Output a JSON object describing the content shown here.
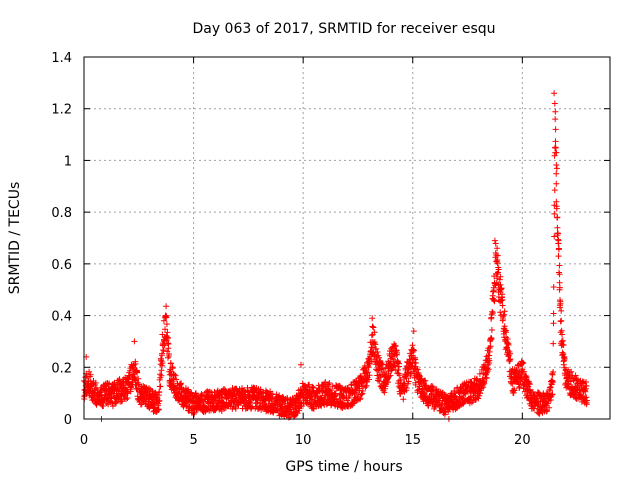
{
  "chart_data": {
    "type": "scatter",
    "title": "Day 063 of 2017, SRMTID for receiver esqu",
    "xlabel": "GPS time / hours",
    "ylabel": "SRMTID / TECUs",
    "xlim": [
      0,
      24
    ],
    "ylim": [
      0,
      1.4
    ],
    "x_ticks": [
      0,
      5,
      10,
      15,
      20
    ],
    "x_tick_labels": [
      "0",
      "5",
      "10",
      "15",
      "20"
    ],
    "y_ticks": [
      0,
      0.2,
      0.4,
      0.6,
      0.8,
      1,
      1.2,
      1.4
    ],
    "y_tick_labels": [
      "0",
      "0.2",
      "0.4",
      "0.6",
      "0.8",
      "1",
      "1.2",
      "1.4"
    ],
    "grid": true,
    "marker": "plus",
    "marker_color": "#ff0000",
    "series": [
      {
        "name": "SRMTID",
        "profile": [
          [
            0.0,
            0.12
          ],
          [
            0.2,
            0.14
          ],
          [
            0.5,
            0.1
          ],
          [
            0.8,
            0.08
          ],
          [
            1.0,
            0.1
          ],
          [
            1.3,
            0.09
          ],
          [
            1.6,
            0.11
          ],
          [
            2.0,
            0.12
          ],
          [
            2.3,
            0.2
          ],
          [
            2.5,
            0.1
          ],
          [
            3.0,
            0.08
          ],
          [
            3.4,
            0.05
          ],
          [
            3.6,
            0.3
          ],
          [
            3.75,
            0.38
          ],
          [
            3.9,
            0.18
          ],
          [
            4.2,
            0.12
          ],
          [
            4.6,
            0.08
          ],
          [
            5.0,
            0.06
          ],
          [
            6.0,
            0.07
          ],
          [
            7.0,
            0.08
          ],
          [
            8.0,
            0.08
          ],
          [
            9.0,
            0.05
          ],
          [
            9.6,
            0.04
          ],
          [
            10.0,
            0.1
          ],
          [
            10.5,
            0.08
          ],
          [
            11.0,
            0.1
          ],
          [
            12.0,
            0.08
          ],
          [
            12.6,
            0.12
          ],
          [
            13.0,
            0.2
          ],
          [
            13.2,
            0.32
          ],
          [
            13.4,
            0.2
          ],
          [
            13.7,
            0.15
          ],
          [
            14.0,
            0.22
          ],
          [
            14.2,
            0.25
          ],
          [
            14.5,
            0.1
          ],
          [
            15.0,
            0.25
          ],
          [
            15.2,
            0.15
          ],
          [
            15.6,
            0.1
          ],
          [
            16.0,
            0.08
          ],
          [
            16.6,
            0.05
          ],
          [
            17.0,
            0.08
          ],
          [
            17.5,
            0.1
          ],
          [
            18.0,
            0.12
          ],
          [
            18.4,
            0.2
          ],
          [
            18.6,
            0.35
          ],
          [
            18.8,
            0.62
          ],
          [
            19.0,
            0.48
          ],
          [
            19.2,
            0.35
          ],
          [
            19.4,
            0.22
          ],
          [
            19.6,
            0.14
          ],
          [
            20.0,
            0.18
          ],
          [
            20.4,
            0.08
          ],
          [
            20.8,
            0.06
          ],
          [
            21.2,
            0.06
          ],
          [
            21.4,
            0.15
          ],
          [
            21.5,
            1.2
          ],
          [
            21.6,
            0.8
          ],
          [
            21.7,
            0.5
          ],
          [
            21.8,
            0.3
          ],
          [
            22.0,
            0.15
          ],
          [
            22.5,
            0.12
          ],
          [
            22.9,
            0.1
          ]
        ],
        "peaks": [
          [
            3.72,
            0.4
          ],
          [
            13.15,
            0.39
          ],
          [
            14.15,
            0.29
          ],
          [
            15.05,
            0.34
          ],
          [
            18.75,
            0.69
          ],
          [
            18.85,
            0.66
          ],
          [
            19.0,
            0.55
          ],
          [
            21.45,
            1.26
          ],
          [
            21.48,
            1.22
          ],
          [
            21.5,
            1.16
          ],
          [
            21.52,
            1.12
          ],
          [
            21.5,
            1.03
          ],
          [
            21.55,
            0.91
          ],
          [
            21.55,
            0.84
          ],
          [
            21.6,
            0.78
          ],
          [
            21.6,
            0.74
          ],
          [
            21.65,
            0.69
          ],
          [
            21.65,
            0.63
          ],
          [
            21.7,
            0.56
          ],
          [
            21.7,
            0.5
          ],
          [
            21.72,
            0.46
          ],
          [
            21.78,
            0.38
          ],
          [
            21.8,
            0.3
          ],
          [
            0.1,
            0.24
          ],
          [
            2.3,
            0.3
          ],
          [
            9.9,
            0.21
          ],
          [
            16.65,
            0.0
          ],
          [
            0.8,
            0.0
          ]
        ],
        "point_count": 2600,
        "x_span": [
          0.0,
          22.95
        ],
        "noise": 0.06
      }
    ]
  }
}
